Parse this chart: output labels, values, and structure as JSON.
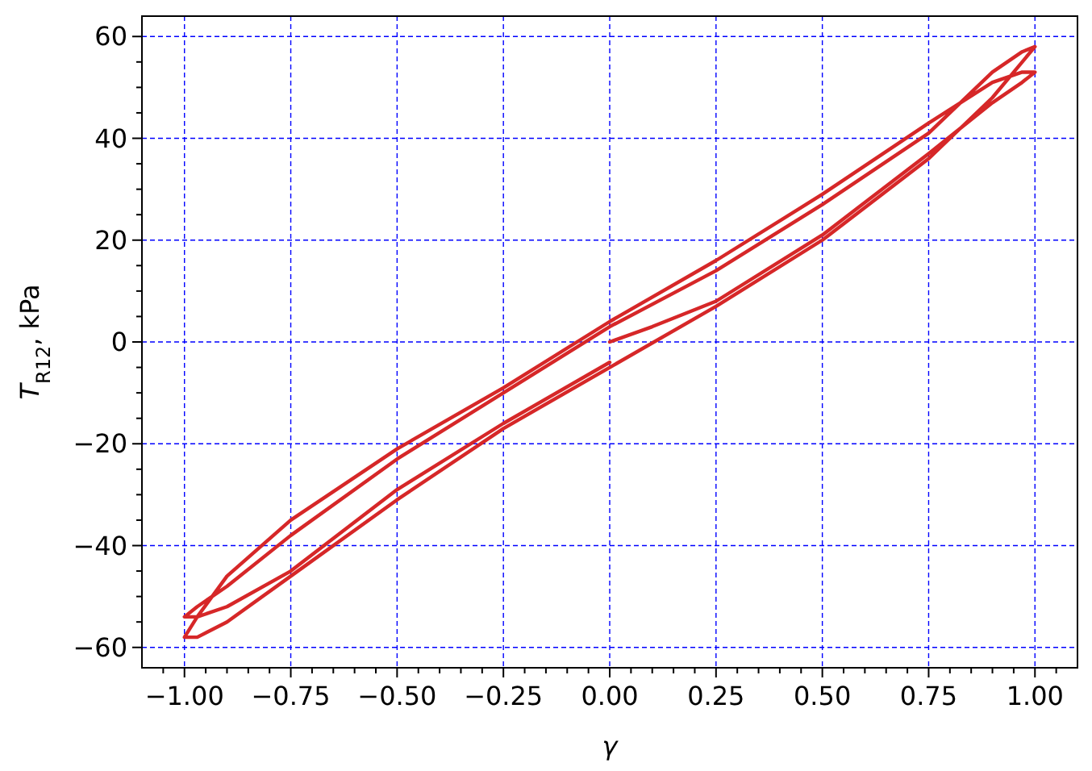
{
  "chart_data": {
    "type": "line",
    "xlabel": "γ",
    "ylabel": "T$_{R12}$, kPa",
    "xlim": [
      -1.1,
      1.1
    ],
    "ylim": [
      -64,
      64
    ],
    "xticks": [
      {
        "value": -1.0,
        "label": "−1.00"
      },
      {
        "value": -0.75,
        "label": "−0.75"
      },
      {
        "value": -0.5,
        "label": "−0.50"
      },
      {
        "value": -0.25,
        "label": "−0.25"
      },
      {
        "value": 0,
        "label": "0.00"
      },
      {
        "value": 0.25,
        "label": "0.25"
      },
      {
        "value": 0.5,
        "label": "0.50"
      },
      {
        "value": 0.75,
        "label": "0.75"
      },
      {
        "value": 1.0,
        "label": "1.00"
      },
      {
        "value": -1.05,
        "label": null
      },
      {
        "value": -0.95,
        "label": null
      },
      {
        "value": -0.9,
        "label": null
      },
      {
        "value": -0.85,
        "label": null
      },
      {
        "value": -0.8,
        "label": null
      },
      {
        "value": -0.7,
        "label": null
      },
      {
        "value": -0.65,
        "label": null
      },
      {
        "value": -0.6,
        "label": null
      },
      {
        "value": -0.55,
        "label": null
      },
      {
        "value": -0.45,
        "label": null
      },
      {
        "value": -0.4,
        "label": null
      },
      {
        "value": -0.35,
        "label": null
      },
      {
        "value": -0.3,
        "label": null
      },
      {
        "value": -0.2,
        "label": null
      },
      {
        "value": -0.15,
        "label": null
      },
      {
        "value": -0.1,
        "label": null
      },
      {
        "value": -0.05,
        "label": null
      },
      {
        "value": 0.05,
        "label": null
      },
      {
        "value": 0.1,
        "label": null
      },
      {
        "value": 0.15,
        "label": null
      },
      {
        "value": 0.2,
        "label": null
      },
      {
        "value": 0.3,
        "label": null
      },
      {
        "value": 0.35,
        "label": null
      },
      {
        "value": 0.4,
        "label": null
      },
      {
        "value": 0.45,
        "label": null
      },
      {
        "value": 0.55,
        "label": null
      },
      {
        "value": 0.6,
        "label": null
      },
      {
        "value": 0.65,
        "label": null
      },
      {
        "value": 0.7,
        "label": null
      },
      {
        "value": 0.8,
        "label": null
      },
      {
        "value": 0.85,
        "label": null
      },
      {
        "value": 0.9,
        "label": null
      },
      {
        "value": 0.95,
        "label": null
      },
      {
        "value": 1.05,
        "label": null
      }
    ],
    "yticks": [
      {
        "value": -60,
        "label": "−60"
      },
      {
        "value": -40,
        "label": "−40"
      },
      {
        "value": -20,
        "label": "−20"
      },
      0,
      20,
      40,
      60,
      {
        "value": -55,
        "label": null
      },
      {
        "value": -50,
        "label": null
      },
      {
        "value": -45,
        "label": null
      },
      {
        "value": -35,
        "label": null
      },
      {
        "value": -30,
        "label": null
      },
      {
        "value": -25,
        "label": null
      },
      {
        "value": -15,
        "label": null
      },
      {
        "value": -10,
        "label": null
      },
      {
        "value": -5,
        "label": null
      },
      {
        "value": 5,
        "label": null
      },
      {
        "value": 10,
        "label": null
      },
      {
        "value": 15,
        "label": null
      },
      {
        "value": 25,
        "label": null
      },
      {
        "value": 30,
        "label": null
      },
      {
        "value": 35,
        "label": null
      },
      {
        "value": 45,
        "label": null
      },
      {
        "value": 50,
        "label": null
      },
      {
        "value": 55,
        "label": null
      }
    ],
    "grid": true,
    "marker": "none",
    "line_style": "solid",
    "series": [
      {
        "color": "#d62728",
        "x": [
          0,
          0.1,
          0.25,
          0.5,
          0.75,
          0.9,
          0.97,
          1,
          0.97,
          0.9,
          0.75,
          0.5,
          0.25,
          0,
          -0.25,
          -0.5,
          -0.75,
          -0.9,
          -0.97,
          -1,
          -0.97,
          -0.9,
          -0.75,
          -0.5,
          -0.25,
          0,
          0.25,
          0.5,
          0.75,
          0.9,
          0.97,
          1,
          0.97,
          0.9,
          0.75,
          0.5,
          0.25,
          0,
          -0.25,
          -0.5,
          -0.75,
          -0.9,
          -0.97,
          -1,
          -0.97,
          -0.9,
          -0.75,
          -0.5,
          -0.25,
          0
        ],
        "values": [
          0,
          3,
          8,
          21,
          37,
          47,
          51,
          53,
          53,
          51,
          43,
          29,
          16,
          4,
          -9,
          -21,
          -35,
          -46,
          -54,
          -58,
          -58,
          -55,
          -46,
          -31,
          -17,
          -5,
          7,
          20,
          36,
          48,
          55,
          58,
          57,
          53,
          41,
          27,
          14,
          3,
          -10,
          -23,
          -38,
          -48,
          -52,
          -54,
          -54,
          -52,
          -45,
          -29,
          -16,
          -4
        ]
      }
    ]
  }
}
